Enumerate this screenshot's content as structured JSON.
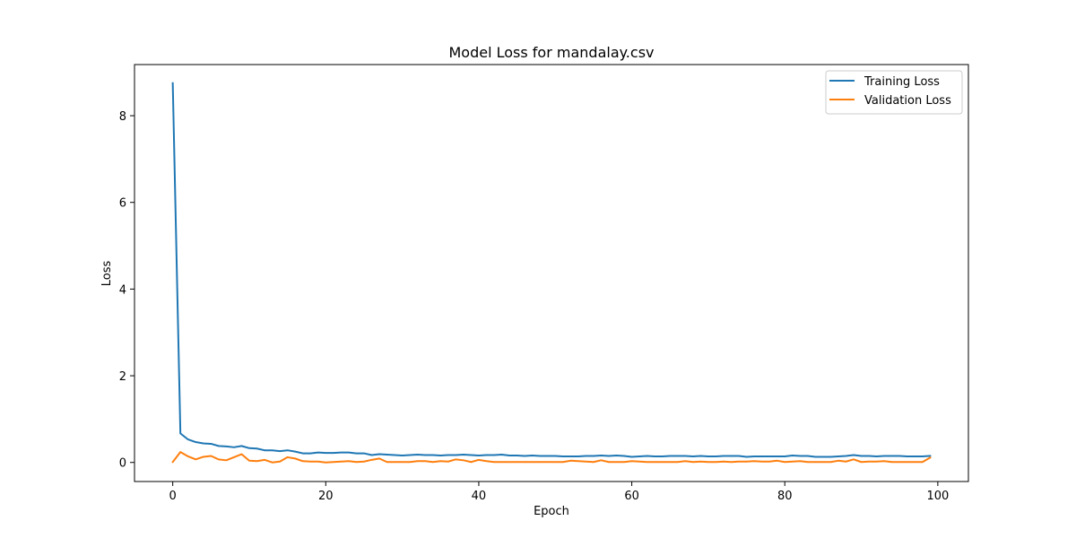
{
  "chart_data": {
    "type": "line",
    "title": "Model Loss for mandalay.csv",
    "xlabel": "Epoch",
    "ylabel": "Loss",
    "xlim": [
      -5,
      104
    ],
    "ylim": [
      -0.44,
      9.18
    ],
    "xticks": [
      0,
      20,
      40,
      60,
      80,
      100
    ],
    "yticks": [
      0,
      2,
      4,
      6,
      8
    ],
    "grid": false,
    "legend_position": "top-right",
    "series": [
      {
        "name": "Training Loss",
        "color": "#1f77b4",
        "x": [
          0,
          1,
          2,
          3,
          4,
          5,
          6,
          7,
          8,
          9,
          10,
          11,
          12,
          13,
          14,
          15,
          16,
          17,
          18,
          19,
          20,
          21,
          22,
          23,
          24,
          25,
          26,
          27,
          28,
          29,
          30,
          31,
          32,
          33,
          34,
          35,
          36,
          37,
          38,
          39,
          40,
          41,
          42,
          43,
          44,
          45,
          46,
          47,
          48,
          49,
          50,
          51,
          52,
          53,
          54,
          55,
          56,
          57,
          58,
          59,
          60,
          61,
          62,
          63,
          64,
          65,
          66,
          67,
          68,
          69,
          70,
          71,
          72,
          73,
          74,
          75,
          76,
          77,
          78,
          79,
          80,
          81,
          82,
          83,
          84,
          85,
          86,
          87,
          88,
          89,
          90,
          91,
          92,
          93,
          94,
          95,
          96,
          97,
          98,
          99
        ],
        "values": [
          8.75,
          0.67,
          0.53,
          0.47,
          0.44,
          0.43,
          0.38,
          0.37,
          0.35,
          0.38,
          0.33,
          0.32,
          0.28,
          0.28,
          0.26,
          0.28,
          0.25,
          0.21,
          0.21,
          0.23,
          0.22,
          0.22,
          0.23,
          0.23,
          0.21,
          0.21,
          0.17,
          0.19,
          0.18,
          0.17,
          0.16,
          0.17,
          0.18,
          0.17,
          0.17,
          0.16,
          0.17,
          0.17,
          0.18,
          0.17,
          0.16,
          0.17,
          0.17,
          0.18,
          0.16,
          0.16,
          0.15,
          0.16,
          0.15,
          0.15,
          0.15,
          0.14,
          0.14,
          0.14,
          0.15,
          0.15,
          0.16,
          0.15,
          0.16,
          0.15,
          0.13,
          0.14,
          0.15,
          0.14,
          0.14,
          0.15,
          0.15,
          0.15,
          0.14,
          0.15,
          0.14,
          0.14,
          0.15,
          0.15,
          0.15,
          0.13,
          0.14,
          0.14,
          0.14,
          0.14,
          0.14,
          0.16,
          0.15,
          0.15,
          0.13,
          0.13,
          0.13,
          0.14,
          0.15,
          0.17,
          0.15,
          0.15,
          0.14,
          0.15,
          0.15,
          0.15,
          0.14,
          0.14,
          0.14,
          0.15
        ]
      },
      {
        "name": "Validation Loss",
        "color": "#ff7f0e",
        "x": [
          0,
          1,
          2,
          3,
          4,
          5,
          6,
          7,
          8,
          9,
          10,
          11,
          12,
          13,
          14,
          15,
          16,
          17,
          18,
          19,
          20,
          21,
          22,
          23,
          24,
          25,
          26,
          27,
          28,
          29,
          30,
          31,
          32,
          33,
          34,
          35,
          36,
          37,
          38,
          39,
          40,
          41,
          42,
          43,
          44,
          45,
          46,
          47,
          48,
          49,
          50,
          51,
          52,
          53,
          54,
          55,
          56,
          57,
          58,
          59,
          60,
          61,
          62,
          63,
          64,
          65,
          66,
          67,
          68,
          69,
          70,
          71,
          72,
          73,
          74,
          75,
          76,
          77,
          78,
          79,
          80,
          81,
          82,
          83,
          84,
          85,
          86,
          87,
          88,
          89,
          90,
          91,
          92,
          93,
          94,
          95,
          96,
          97,
          98,
          99
        ],
        "values": [
          0.01,
          0.24,
          0.14,
          0.07,
          0.13,
          0.15,
          0.07,
          0.05,
          0.12,
          0.19,
          0.04,
          0.03,
          0.06,
          0.0,
          0.02,
          0.12,
          0.09,
          0.03,
          0.02,
          0.02,
          0.0,
          0.01,
          0.02,
          0.03,
          0.01,
          0.02,
          0.06,
          0.09,
          0.01,
          0.01,
          0.01,
          0.01,
          0.03,
          0.03,
          0.01,
          0.03,
          0.02,
          0.07,
          0.05,
          0.01,
          0.06,
          0.03,
          0.01,
          0.01,
          0.01,
          0.01,
          0.01,
          0.01,
          0.01,
          0.01,
          0.01,
          0.01,
          0.04,
          0.03,
          0.02,
          0.01,
          0.05,
          0.01,
          0.01,
          0.01,
          0.03,
          0.02,
          0.01,
          0.01,
          0.01,
          0.01,
          0.01,
          0.03,
          0.01,
          0.02,
          0.01,
          0.01,
          0.02,
          0.01,
          0.02,
          0.02,
          0.03,
          0.02,
          0.02,
          0.04,
          0.01,
          0.02,
          0.03,
          0.01,
          0.01,
          0.01,
          0.01,
          0.04,
          0.02,
          0.07,
          0.01,
          0.02,
          0.02,
          0.03,
          0.01,
          0.01,
          0.01,
          0.01,
          0.01,
          0.11
        ]
      }
    ]
  }
}
